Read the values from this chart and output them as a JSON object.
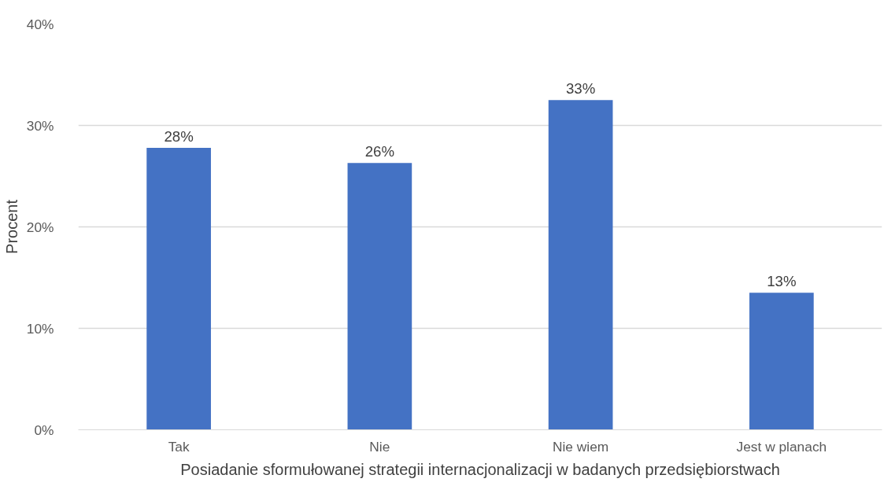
{
  "chart_data": {
    "type": "bar",
    "xlabel": "Posiadanie sformułowanej strategii internacjonalizacji w badanych przedsiębiorstwach",
    "ylabel": "Procent",
    "categories": [
      "Tak",
      "Nie",
      "Nie wiem",
      "Jest w planach"
    ],
    "values": [
      27.8,
      26.3,
      32.5,
      13.5
    ],
    "value_labels": [
      "28%",
      "26%",
      "33%",
      "13%"
    ],
    "color": "#4472c4",
    "ylim": [
      0,
      40
    ],
    "yticks": [
      {
        "value": 0,
        "label": "0%"
      },
      {
        "value": 10,
        "label": "10%"
      },
      {
        "value": 20,
        "label": "20%"
      },
      {
        "value": 30,
        "label": "30%"
      },
      {
        "value": 40,
        "label": "40%"
      }
    ],
    "grid": "y"
  }
}
